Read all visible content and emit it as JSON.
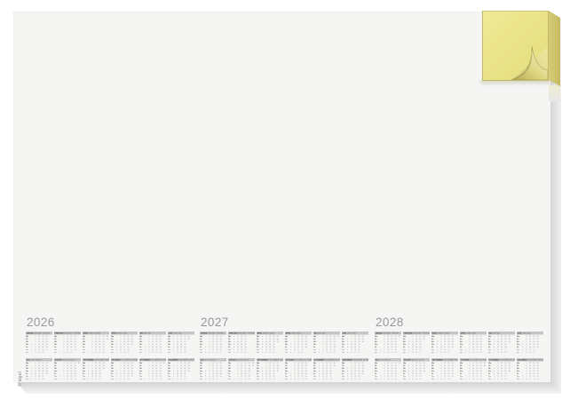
{
  "colors": {
    "background": "#ffffff",
    "pad_face": "#f5f5f4",
    "note_yellow": "#e9e287",
    "note_side_yellow": "#cdc26b",
    "month_header_gray": "#c5c5c5",
    "year_label_gray": "#98989b"
  },
  "brand": {
    "mark": "© sigel"
  },
  "calendar": {
    "weekdays": [
      "Mo",
      "Di",
      "Mi",
      "Do",
      "Fr",
      "Sa",
      "So"
    ],
    "month_names": [
      {
        "de": "JANUAR",
        "en": "JANUARY",
        "fr": "JANVIER"
      },
      {
        "de": "FEBRUAR",
        "en": "FEBRUARY",
        "fr": "FÉVRIER"
      },
      {
        "de": "MÄRZ",
        "en": "MARCH",
        "fr": "MARS"
      },
      {
        "de": "APRIL",
        "en": "APRIL",
        "fr": "AVRIL"
      },
      {
        "de": "MAI",
        "en": "MAY",
        "fr": "MAI"
      },
      {
        "de": "JUNI",
        "en": "JUNE",
        "fr": "JUIN"
      },
      {
        "de": "JULI",
        "en": "JULY",
        "fr": "JUILLET"
      },
      {
        "de": "AUGUST",
        "en": "AUGUST",
        "fr": "AOÛT"
      },
      {
        "de": "SEPTEMBER",
        "en": "SEPTEMBER",
        "fr": "SEPTEMBRE"
      },
      {
        "de": "OKTOBER",
        "en": "OCTOBER",
        "fr": "OCTOBRE"
      },
      {
        "de": "NOVEMBER",
        "en": "NOVEMBER",
        "fr": "NOVEMBRE"
      },
      {
        "de": "DEZEMBER",
        "en": "DECEMBER",
        "fr": "DÉCEMBRE"
      }
    ],
    "years": [
      {
        "label": "2026",
        "start_weekdays": [
          3,
          6,
          6,
          2,
          4,
          0,
          2,
          5,
          1,
          3,
          6,
          1
        ],
        "month_lengths": [
          31,
          28,
          31,
          30,
          31,
          30,
          31,
          31,
          30,
          31,
          30,
          31
        ]
      },
      {
        "label": "2027",
        "start_weekdays": [
          4,
          0,
          0,
          3,
          5,
          1,
          3,
          6,
          2,
          4,
          0,
          2
        ],
        "month_lengths": [
          31,
          28,
          31,
          30,
          31,
          30,
          31,
          31,
          30,
          31,
          30,
          31
        ]
      },
      {
        "label": "2028",
        "start_weekdays": [
          5,
          1,
          2,
          5,
          0,
          3,
          5,
          1,
          4,
          6,
          2,
          4
        ],
        "month_lengths": [
          31,
          29,
          31,
          30,
          31,
          30,
          31,
          31,
          30,
          31,
          30,
          31
        ]
      }
    ]
  }
}
